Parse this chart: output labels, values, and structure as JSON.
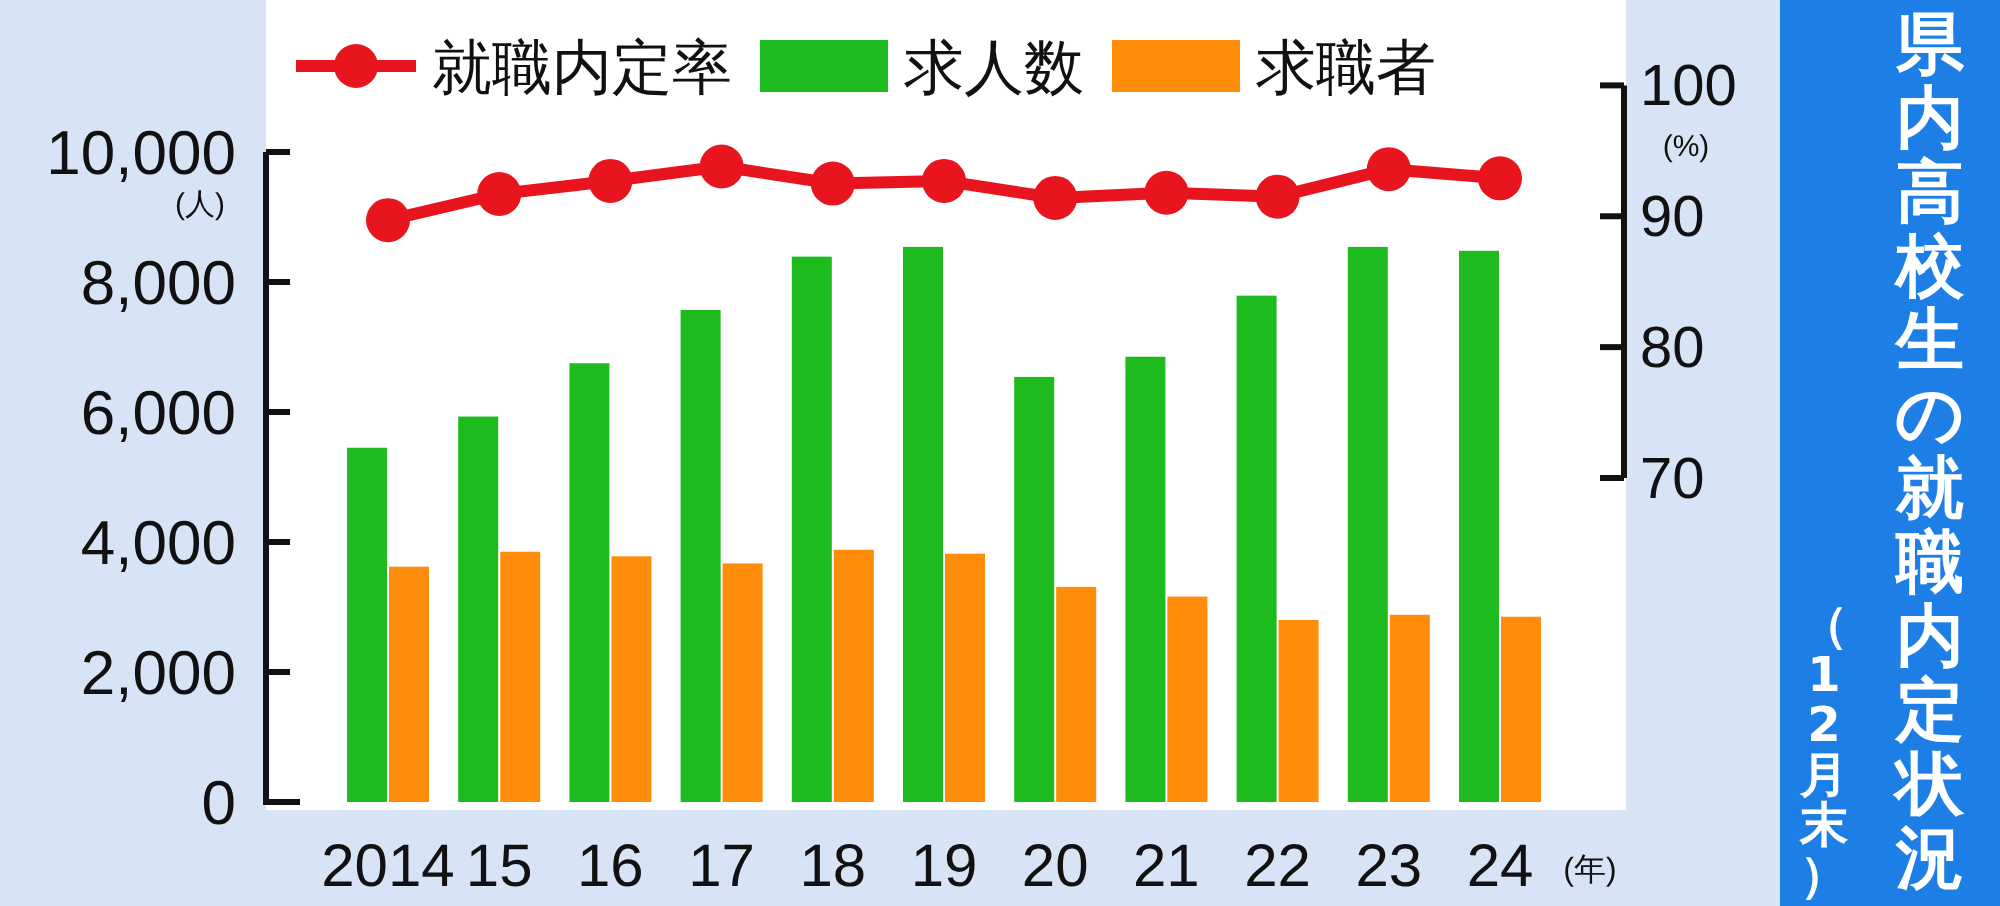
{
  "chart_data": {
    "type": "bar",
    "title": "県内高校生の就職内定状況",
    "subtitle": "（12月末）",
    "xlabel": "(年)",
    "ylabel": "(人)",
    "y2label": "(%)",
    "categories": [
      "2014",
      "15",
      "16",
      "17",
      "18",
      "19",
      "20",
      "21",
      "22",
      "23",
      "24"
    ],
    "series": [
      {
        "name": "就職内定率",
        "type": "line",
        "axis": "y2",
        "color": "#e8141e",
        "values": [
          89.7,
          91.7,
          92.7,
          93.8,
          92.5,
          92.7,
          91.4,
          91.8,
          91.5,
          93.6,
          92.9
        ]
      },
      {
        "name": "求人数",
        "color": "#1dbb1d",
        "values": [
          5450,
          5930,
          6750,
          7570,
          8390,
          8540,
          6540,
          6850,
          7790,
          8540,
          8480
        ]
      },
      {
        "name": "求職者",
        "color": "#ff8c0a",
        "values": [
          3620,
          3850,
          3780,
          3670,
          3880,
          3820,
          3310,
          3160,
          2800,
          2880,
          2850
        ]
      }
    ],
    "ylim": [
      0,
      10000
    ],
    "yticks": [
      0,
      {
        "value": 2000,
        "label": "2,000"
      },
      {
        "value": 4000,
        "label": "4,000"
      },
      {
        "value": 6000,
        "label": "6,000"
      },
      {
        "value": 8000,
        "label": "8,000"
      },
      {
        "value": 10000,
        "label": "10,000"
      }
    ],
    "y2lim": [
      70,
      100
    ],
    "y2ticks": [
      70,
      80,
      90,
      100
    ],
    "legend": "top",
    "marker": "circle",
    "grid": false
  }
}
